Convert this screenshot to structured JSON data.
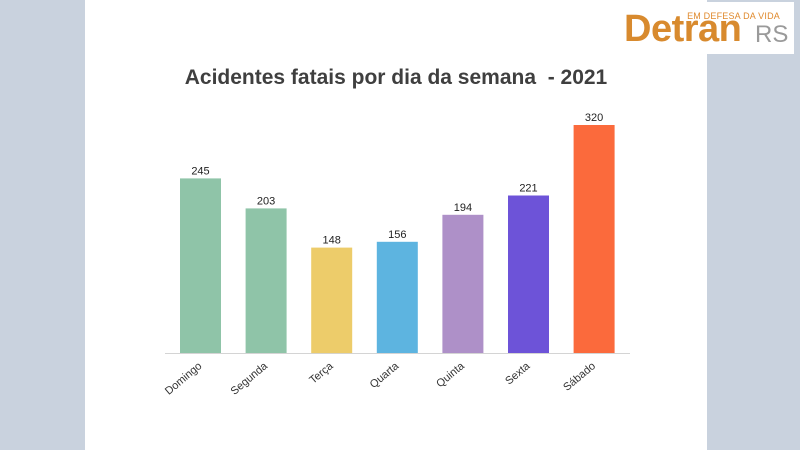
{
  "logo": {
    "tagline": "EM DEFESA DA VIDA",
    "word": "Detran",
    "suffix": "RS",
    "colors": {
      "primary": "#d88a2e",
      "secondary": "#9a9a9a"
    }
  },
  "chart_data": {
    "type": "bar",
    "title": "Acidentes fatais por dia da semana  - 2021",
    "xlabel": "",
    "ylabel": "",
    "categories": [
      "Domingo",
      "Segunda",
      "Terça",
      "Quarta",
      "Quinta",
      "Sexta",
      "Sábado"
    ],
    "values": [
      245,
      203,
      148,
      156,
      194,
      221,
      320
    ],
    "value_labels": [
      "245",
      "203",
      "148",
      "156",
      "194",
      "221",
      "320"
    ],
    "colors": [
      "#8fc4a8",
      "#8fc4a8",
      "#edcc6a",
      "#5db4e0",
      "#ae90c8",
      "#6d53d8",
      "#fb6a3c"
    ],
    "ylim": [
      0,
      320
    ],
    "grid": false,
    "legend": "none"
  }
}
